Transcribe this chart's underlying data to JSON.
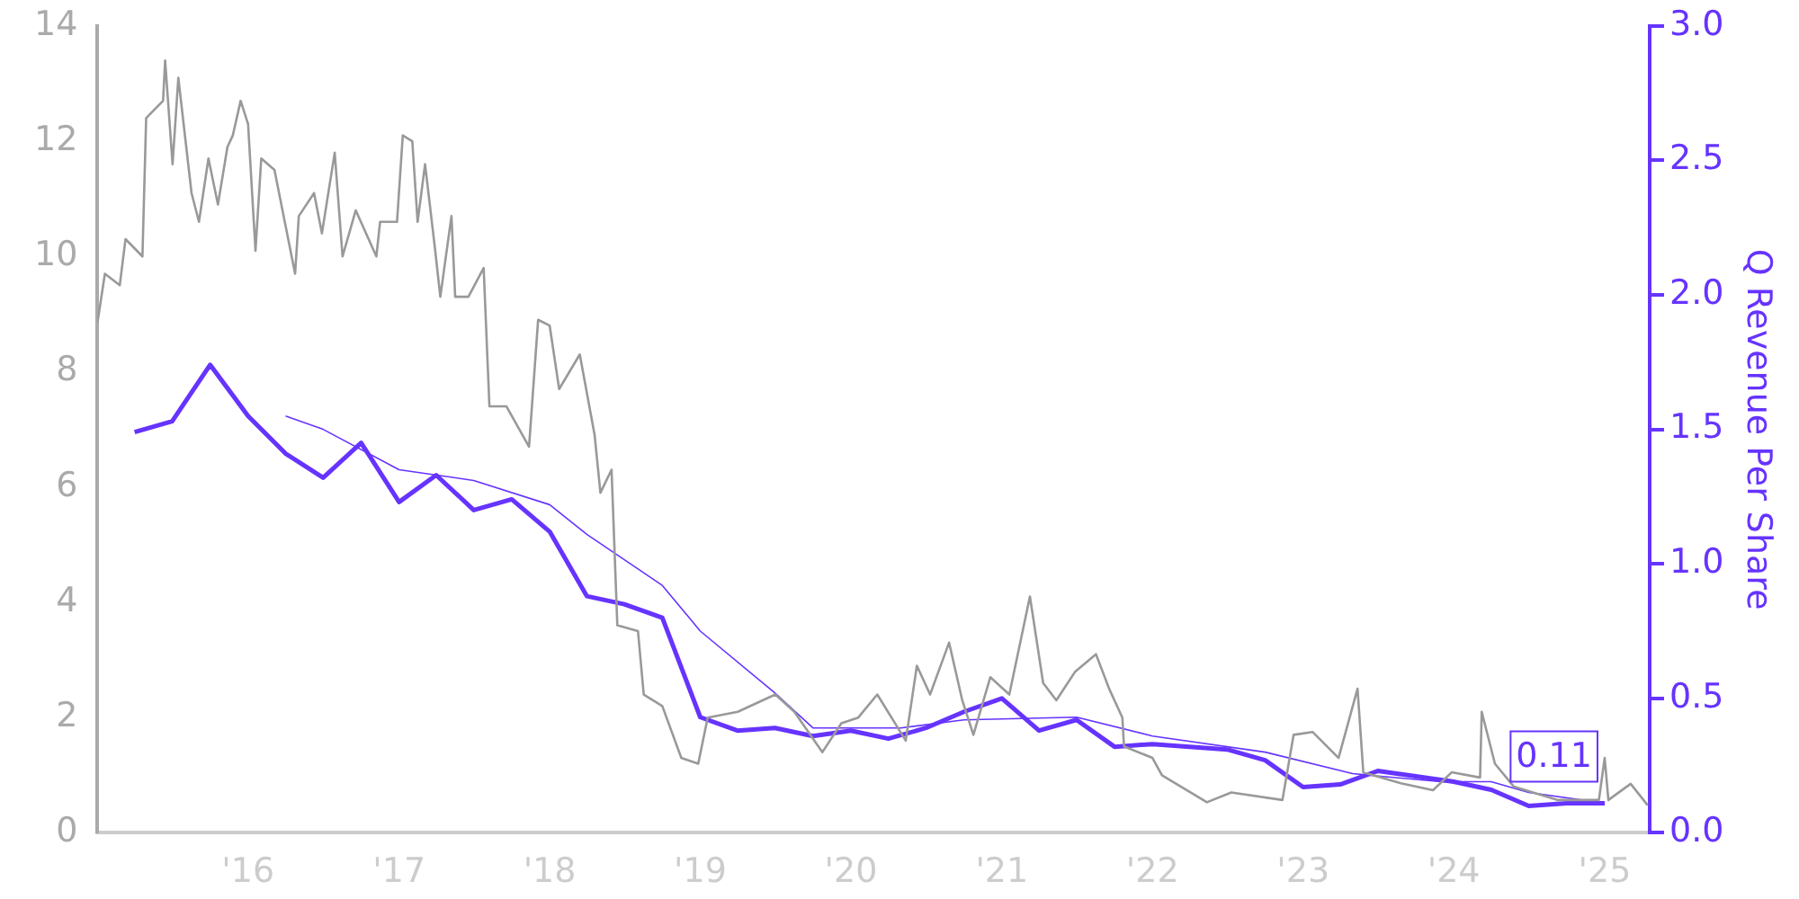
{
  "chart_data": {
    "type": "line",
    "y2label": "Q Revenue Per Share",
    "xlim": [
      "2015-01-01",
      "2025-04-20"
    ],
    "xticks": [
      {
        "value": "2016-01-01",
        "label": "'16"
      },
      {
        "value": "2017-01-01",
        "label": "'17"
      },
      {
        "value": "2018-01-01",
        "label": "'18"
      },
      {
        "value": "2019-01-01",
        "label": "'19"
      },
      {
        "value": "2020-01-01",
        "label": "'20"
      },
      {
        "value": "2021-01-01",
        "label": "'21"
      },
      {
        "value": "2022-01-01",
        "label": "'22"
      },
      {
        "value": "2023-01-01",
        "label": "'23"
      },
      {
        "value": "2024-01-01",
        "label": "'24"
      },
      {
        "value": "2025-01-01",
        "label": "'25"
      }
    ],
    "ylim": [
      0,
      14
    ],
    "yticks": [
      0,
      2,
      4,
      6,
      8,
      10,
      12,
      14
    ],
    "y2lim": [
      0,
      3
    ],
    "y2ticks": [
      {
        "value": 0,
        "label": "0.0"
      },
      {
        "value": 0.5,
        "label": "0.5"
      },
      {
        "value": 1,
        "label": "1.0"
      },
      {
        "value": 1.5,
        "label": "1.5"
      },
      {
        "value": 2,
        "label": "2.0"
      },
      {
        "value": 2.5,
        "label": "2.5"
      },
      {
        "value": 3,
        "label": "3.0"
      }
    ],
    "grid": false,
    "legend": false,
    "marker": "none",
    "line_style": "solid",
    "series": [
      {
        "color": "#999999",
        "x": [
          "2015-01-01",
          "2015-01-19",
          "2015-02-24",
          "2015-03-10",
          "2015-04-20",
          "2015-04-29",
          "2015-06-09",
          "2015-06-14",
          "2015-07-02",
          "2015-07-16",
          "2015-08-17",
          "2015-09-04",
          "2015-09-27",
          "2015-10-20",
          "2015-11-12",
          "2015-11-25",
          "2015-12-14",
          "2016-01-01",
          "2016-01-19",
          "2016-02-02",
          "2016-03-05",
          "2016-04-24",
          "2016-05-03",
          "2016-06-09",
          "2016-06-28",
          "2016-07-29",
          "2016-08-17",
          "2016-09-18",
          "2016-11-07",
          "2016-11-16",
          "2016-12-27",
          "2017-01-10",
          "2017-02-02",
          "2017-02-15",
          "2017-03-05",
          "2017-03-28",
          "2017-04-11",
          "2017-05-08",
          "2017-05-17",
          "2017-06-18",
          "2017-07-25",
          "2017-08-08",
          "2017-09-18",
          "2017-11-12",
          "2017-12-04",
          "2018-01-01",
          "2018-01-24",
          "2018-03-15",
          "2018-04-20",
          "2018-05-04",
          "2018-05-31",
          "2018-06-14",
          "2018-08-03",
          "2018-08-17",
          "2018-10-01",
          "2018-11-16",
          "2018-12-27",
          "2019-01-19",
          "2019-04-02",
          "2019-07-02",
          "2019-08-17",
          "2019-10-24",
          "2019-12-09",
          "2020-01-19",
          "2020-03-05",
          "2020-05-13",
          "2020-06-09",
          "2020-07-11",
          "2020-08-26",
          "2020-09-27",
          "2020-10-24",
          "2020-12-04",
          "2021-01-19",
          "2021-03-10",
          "2021-04-11",
          "2021-05-13",
          "2021-06-28",
          "2021-08-17",
          "2021-09-18",
          "2021-10-20",
          "2021-10-24",
          "2022-01-01",
          "2022-01-24",
          "2022-05-13",
          "2022-07-11",
          "2022-11-12",
          "2022-12-09",
          "2023-01-24",
          "2023-03-28",
          "2023-05-13",
          "2023-05-27",
          "2023-08-26",
          "2023-11-12",
          "2023-12-27",
          "2024-03-05",
          "2024-03-09",
          "2024-04-10",
          "2024-05-26",
          "2024-09-08",
          "2024-12-18",
          "2025-01-01",
          "2025-01-10",
          "2025-03-05",
          "2025-04-15"
        ],
        "values": [
          8.85,
          9.7,
          9.5,
          10.3,
          10.0,
          12.4,
          12.7,
          13.4,
          11.6,
          13.1,
          11.1,
          10.6,
          11.7,
          10.9,
          11.9,
          12.1,
          12.7,
          12.3,
          10.1,
          11.7,
          11.5,
          9.7,
          10.7,
          11.1,
          10.4,
          11.8,
          10.0,
          10.8,
          10.0,
          10.6,
          10.6,
          12.1,
          12.0,
          10.6,
          11.6,
          10.2,
          9.3,
          10.7,
          9.3,
          9.3,
          9.8,
          7.4,
          7.4,
          6.7,
          8.9,
          8.8,
          7.7,
          8.3,
          6.9,
          5.9,
          6.3,
          3.6,
          3.5,
          2.4,
          2.2,
          1.3,
          1.2,
          2.0,
          2.1,
          2.4,
          2.1,
          1.4,
          1.9,
          2.0,
          2.4,
          1.6,
          2.9,
          2.4,
          3.3,
          2.3,
          1.7,
          2.7,
          2.4,
          4.1,
          2.6,
          2.3,
          2.8,
          3.1,
          2.5,
          2.0,
          1.5,
          1.3,
          1.0,
          0.53,
          0.7,
          0.57,
          1.7,
          1.75,
          1.3,
          2.5,
          1.05,
          0.86,
          0.74,
          1.05,
          0.96,
          2.1,
          1.2,
          0.8,
          0.57,
          0.57,
          1.3,
          0.57,
          0.85,
          0.48
        ]
      },
      {
        "color": "#6633ff",
        "axis": "y2",
        "x": [
          "2015-04",
          "2015-07",
          "2015-10",
          "2016-01",
          "2016-04",
          "2016-07",
          "2016-10",
          "2017-01",
          "2017-04",
          "2017-07",
          "2017-10",
          "2018-01",
          "2018-04",
          "2018-07",
          "2018-10",
          "2019-01",
          "2019-04",
          "2019-07",
          "2019-10",
          "2020-01",
          "2020-04",
          "2020-07",
          "2020-10",
          "2021-01",
          "2021-04",
          "2021-07",
          "2021-10",
          "2022-01",
          "2022-04",
          "2022-07",
          "2022-10",
          "2023-01",
          "2023-04",
          "2023-07",
          "2023-10",
          "2024-01",
          "2024-04",
          "2024-07",
          "2024-10",
          "2025-01"
        ],
        "values": [
          1.49,
          1.53,
          1.74,
          1.55,
          1.41,
          1.32,
          1.45,
          1.23,
          1.33,
          1.2,
          1.24,
          1.12,
          0.88,
          0.85,
          0.8,
          0.43,
          0.38,
          0.39,
          0.36,
          0.38,
          0.35,
          0.39,
          0.45,
          0.5,
          0.38,
          0.42,
          0.32,
          0.33,
          0.32,
          0.31,
          0.27,
          0.17,
          0.18,
          0.23,
          0.21,
          0.19,
          0.16,
          0.1,
          0.11,
          0.11
        ],
        "value_labels": [
          null,
          null,
          null,
          null,
          null,
          null,
          null,
          null,
          null,
          null,
          null,
          null,
          null,
          null,
          null,
          null,
          null,
          null,
          null,
          null,
          null,
          null,
          null,
          null,
          null,
          null,
          null,
          null,
          null,
          null,
          null,
          null,
          null,
          null,
          null,
          null,
          null,
          null,
          null,
          "0.11"
        ]
      },
      {
        "color": "#6633ff",
        "axis": "y2",
        "x": [
          "2016-04",
          "2016-07",
          "2017-01",
          "2017-07",
          "2018-01",
          "2018-04",
          "2018-10",
          "2019-01",
          "2019-07",
          "2019-10",
          "2020-05",
          "2020-10",
          "2021-07",
          "2022-01",
          "2022-10",
          "2023-05",
          "2023-12",
          "2024-04",
          "2024-07",
          "2025-01"
        ],
        "values": [
          1.55,
          1.5,
          1.35,
          1.31,
          1.22,
          1.11,
          0.92,
          0.75,
          0.52,
          0.39,
          0.39,
          0.42,
          0.43,
          0.36,
          0.3,
          0.22,
          0.19,
          0.19,
          0.15,
          0.11
        ]
      }
    ]
  }
}
